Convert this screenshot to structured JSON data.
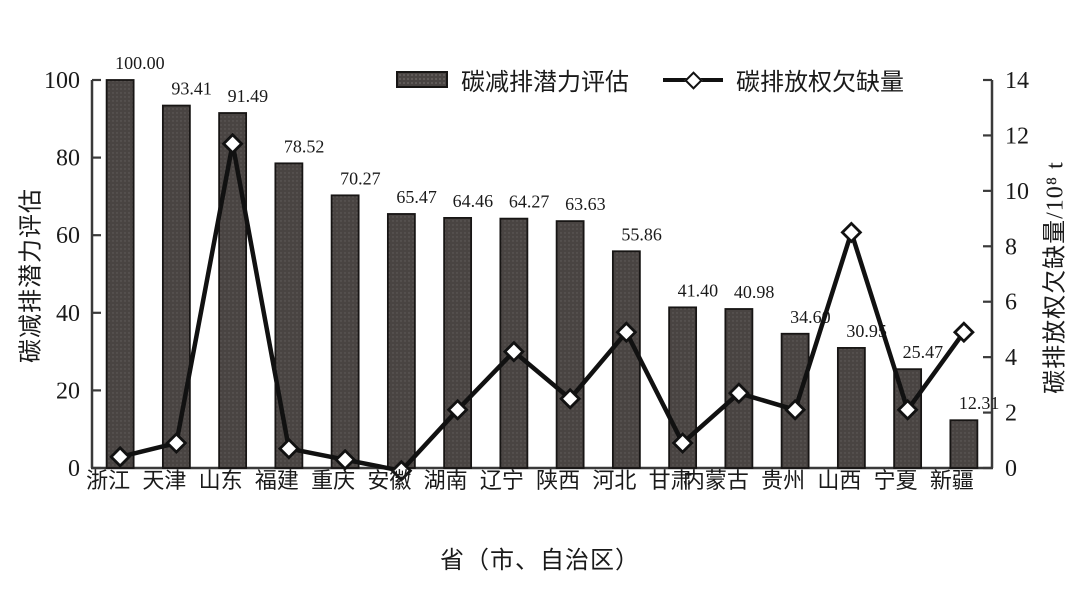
{
  "chart_data": {
    "type": "bar+line",
    "categories": [
      "浙江",
      "天津",
      "山东",
      "福建",
      "重庆",
      "安徽",
      "湖南",
      "辽宁",
      "陕西",
      "河北",
      "甘肃",
      "内蒙古",
      "贵州",
      "山西",
      "宁夏",
      "新疆"
    ],
    "series": [
      {
        "name": "碳减排潜力评估",
        "type": "bar",
        "axis": "left",
        "values": [
          100.0,
          93.41,
          91.49,
          78.52,
          70.27,
          65.47,
          64.46,
          64.27,
          63.63,
          55.86,
          41.4,
          40.98,
          34.6,
          30.95,
          25.47,
          12.31
        ],
        "value_labels": [
          "100.00",
          "93.41",
          "91.49",
          "78.52",
          "70.27",
          "65.47",
          "64.46",
          "64.27",
          "63.63",
          "55.86",
          "41.40",
          "40.98",
          "34.60",
          "30.95",
          "25.47",
          "12.31"
        ]
      },
      {
        "name": "碳排放权欠缺量",
        "type": "line",
        "axis": "right",
        "values": [
          0.4,
          0.9,
          11.7,
          0.7,
          0.3,
          -0.1,
          2.1,
          4.2,
          2.5,
          4.9,
          0.9,
          2.7,
          2.1,
          8.5,
          2.1,
          4.9
        ]
      }
    ],
    "left_axis": {
      "title": "碳减排潜力评估",
      "min": 0,
      "max": 100,
      "ticks": [
        0,
        20,
        40,
        60,
        80,
        100
      ]
    },
    "right_axis": {
      "title": "碳排放权欠缺量/10⁸ t",
      "min": 0,
      "max": 14,
      "ticks": [
        0,
        2,
        4,
        6,
        8,
        10,
        12,
        14
      ]
    },
    "x_axis": {
      "title": "省（市、自治区）"
    },
    "legend": [
      {
        "label": "碳减排潜力评估",
        "marker": "bar-swatch"
      },
      {
        "label": "碳排放权欠缺量",
        "marker": "line-diamond"
      }
    ],
    "layout": {
      "grid": false,
      "legend_position": "top-center",
      "bar_label_rotation": -45,
      "x_label_rotation": -45
    },
    "colors": {
      "bar_fill": "#494442",
      "bar_edge": "#171514",
      "line": "#111111",
      "marker_fill": "#ffffff",
      "marker_edge": "#111111",
      "axis": "#3a3a3a",
      "text": "#1a1a1a"
    }
  }
}
